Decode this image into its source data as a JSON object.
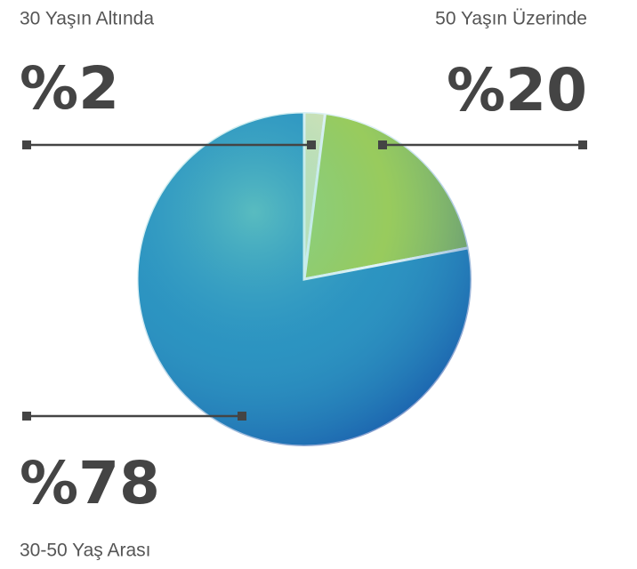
{
  "chart_data": {
    "type": "pie",
    "categories": [
      "30 Yaşın Altında",
      "50 Yaşın Üzerinde",
      "30-50 Yaş Arası"
    ],
    "values": [
      2,
      20,
      78
    ],
    "value_labels": [
      "%2",
      "%20",
      "%78"
    ],
    "colors": [
      "#e9ebb3",
      "#a9d04a",
      "#2a8fc0"
    ]
  }
}
